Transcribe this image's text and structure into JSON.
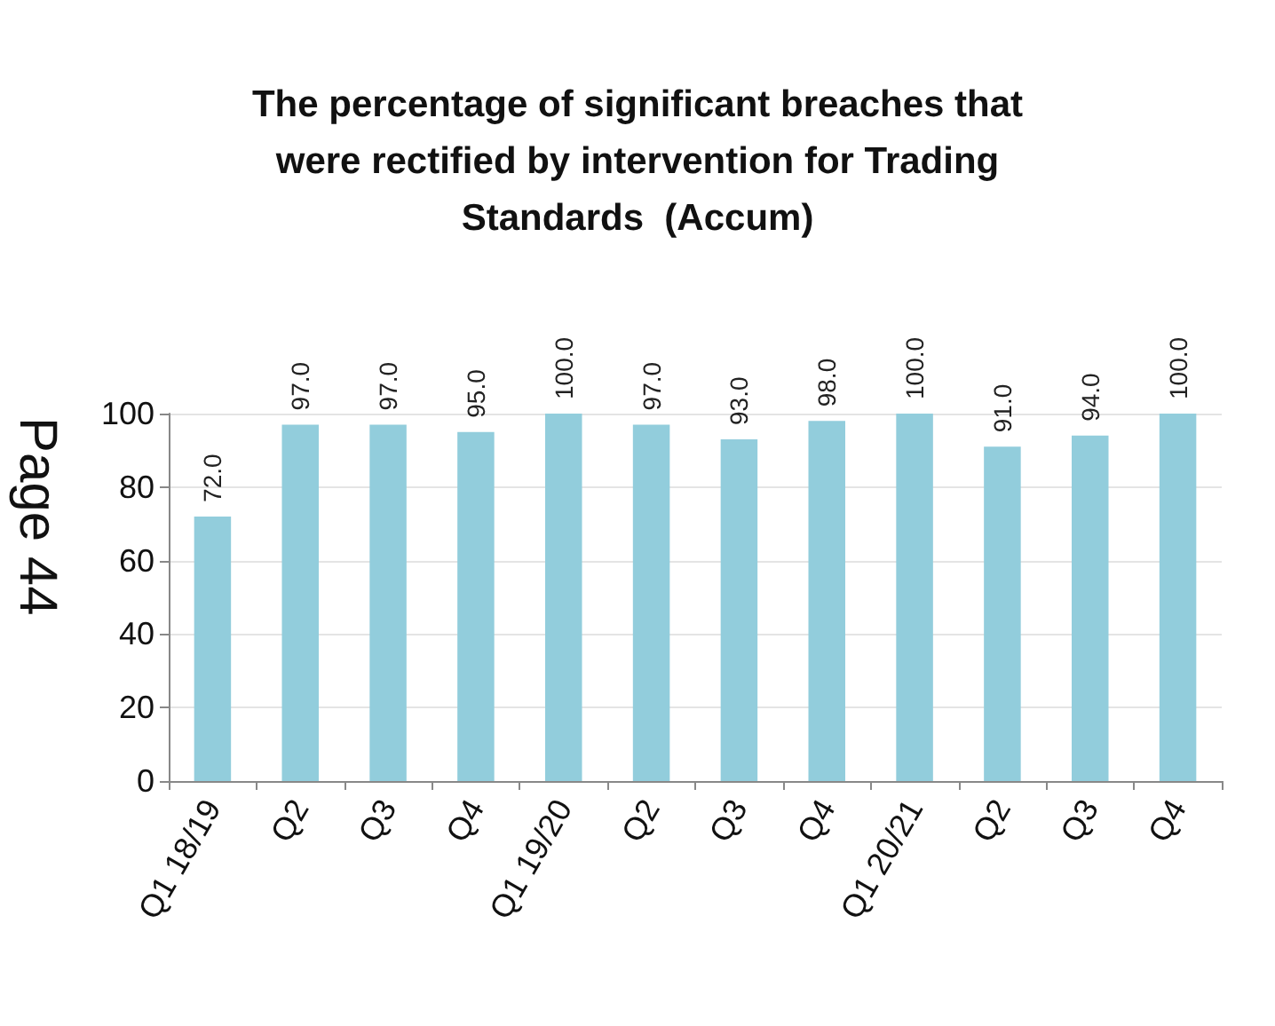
{
  "chart_data": {
    "type": "bar",
    "title": "The percentage of significant breaches that\nwere rectified by intervention for Trading\nStandards  (Accum)",
    "categories": [
      "Q1 18/19",
      "Q2",
      "Q3",
      "Q4",
      "Q1 19/20",
      "Q2",
      "Q3",
      "Q4",
      "Q1 20/21",
      "Q2",
      "Q3",
      "Q4"
    ],
    "values": [
      72,
      97,
      97,
      95,
      100,
      97,
      93,
      98,
      100,
      91,
      94,
      100
    ],
    "value_labels": [
      "72.0",
      "97.0",
      "97.0",
      "95.0",
      "100.0",
      "97.0",
      "93.0",
      "98.0",
      "100.0",
      "91.0",
      "94.0",
      "100.0"
    ],
    "color": "#92cddc",
    "ylim": [
      0,
      100
    ],
    "yticks": [
      0,
      20,
      40,
      60,
      80,
      100
    ],
    "grid": "y",
    "annotations": [
      "Page 44"
    ]
  }
}
